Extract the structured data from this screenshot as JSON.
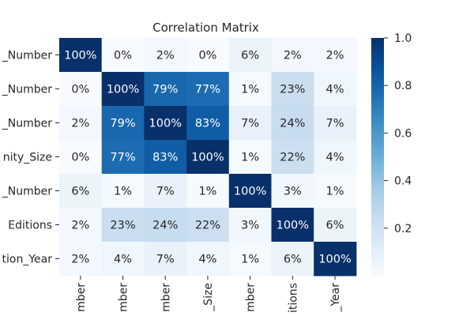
{
  "chart_data": {
    "type": "heatmap",
    "title": "Correlation Matrix",
    "row_labels": [
      "_Number",
      "_Number",
      "_Number",
      "nity_Size",
      "_Number",
      "Editions",
      "tion_Year"
    ],
    "col_labels": [
      "mber",
      "mber",
      "mber",
      "_Size",
      "mber",
      "itions",
      "_Year"
    ],
    "values": [
      [
        1.0,
        0.0,
        0.02,
        0.0,
        0.06,
        0.02,
        0.02
      ],
      [
        0.0,
        1.0,
        0.79,
        0.77,
        0.01,
        0.23,
        0.04
      ],
      [
        0.02,
        0.79,
        1.0,
        0.83,
        0.07,
        0.24,
        0.07
      ],
      [
        0.0,
        0.77,
        0.83,
        1.0,
        0.01,
        0.22,
        0.04
      ],
      [
        0.06,
        0.01,
        0.07,
        0.01,
        1.0,
        0.03,
        0.01
      ],
      [
        0.02,
        0.23,
        0.24,
        0.22,
        0.03,
        1.0,
        0.06
      ],
      [
        0.02,
        0.04,
        0.07,
        0.04,
        0.01,
        0.06,
        1.0
      ]
    ],
    "cell_labels": [
      [
        "100%",
        "0%",
        "2%",
        "0%",
        "6%",
        "2%",
        "2%"
      ],
      [
        "0%",
        "100%",
        "79%",
        "77%",
        "1%",
        "23%",
        "4%"
      ],
      [
        "2%",
        "79%",
        "100%",
        "83%",
        "7%",
        "24%",
        "7%"
      ],
      [
        "0%",
        "77%",
        "83%",
        "100%",
        "1%",
        "22%",
        "4%"
      ],
      [
        "6%",
        "1%",
        "7%",
        "1%",
        "100%",
        "3%",
        "1%"
      ],
      [
        "2%",
        "23%",
        "24%",
        "22%",
        "3%",
        "100%",
        "6%"
      ],
      [
        "2%",
        "4%",
        "7%",
        "4%",
        "1%",
        "6%",
        "100%"
      ]
    ],
    "colormap": "Blues",
    "colorbar": {
      "range": [
        0.0,
        1.0
      ],
      "ticks": [
        0.2,
        0.4,
        0.6,
        0.8,
        1.0
      ],
      "tick_labels": [
        "0.2",
        "0.4",
        "0.6",
        "0.8",
        "1.0"
      ]
    }
  }
}
